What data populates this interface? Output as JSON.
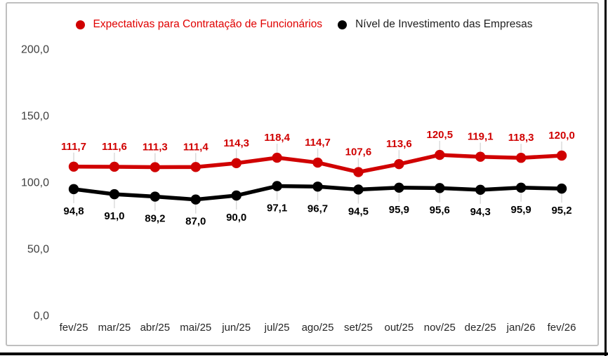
{
  "legend": {
    "items": [
      {
        "label": "Expectativas para Contratação de Funcionários",
        "color": "#d00000",
        "text_color": "#e00000"
      },
      {
        "label": "Nível de Investimento das Empresas",
        "color": "#000000",
        "text_color": "#1f1f1f"
      }
    ]
  },
  "chart_data": {
    "type": "line",
    "categories": [
      "fev/25",
      "mar/25",
      "abr/25",
      "mai/25",
      "jun/25",
      "jul/25",
      "ago/25",
      "set/25",
      "out/25",
      "nov/25",
      "dez/25",
      "jan/26",
      "fev/26"
    ],
    "series": [
      {
        "name": "Expectativas para Contratação de Funcionários",
        "color": "#d00000",
        "values": [
          111.7,
          111.6,
          111.3,
          111.4,
          114.3,
          118.4,
          114.7,
          107.6,
          113.6,
          120.5,
          119.1,
          118.3,
          120.0
        ],
        "point_labels": [
          "111,7",
          "111,6",
          "111,3",
          "111,4",
          "114,3",
          "118,4",
          "114,7",
          "107,6",
          "113,6",
          "120,5",
          "119,1",
          "118,3",
          "120,0"
        ],
        "label_position": "above"
      },
      {
        "name": "Nível de Investimento das Empresas",
        "color": "#000000",
        "values": [
          94.8,
          91.0,
          89.2,
          87.0,
          90.0,
          97.1,
          96.7,
          94.5,
          95.9,
          95.6,
          94.3,
          95.9,
          95.2
        ],
        "point_labels": [
          "94,8",
          "91,0",
          "89,2",
          "87,0",
          "90,0",
          "97,1",
          "96,7",
          "94,5",
          "95,9",
          "95,6",
          "94,3",
          "95,9",
          "95,2"
        ],
        "label_position": "below"
      }
    ],
    "title": "",
    "xlabel": "",
    "ylabel": "",
    "ylim": [
      0,
      200
    ],
    "yticks": [
      {
        "value": 0,
        "label": "0,0"
      },
      {
        "value": 50,
        "label": "50,0"
      },
      {
        "value": 100,
        "label": "100,0"
      },
      {
        "value": 150,
        "label": "150,0"
      },
      {
        "value": 200,
        "label": "200,0"
      }
    ],
    "grid": false,
    "legend_position": "top",
    "leader_line_color": "#d9d9d9",
    "y_axis_text_color": "#404040",
    "x_axis_text_color": "#262626"
  }
}
